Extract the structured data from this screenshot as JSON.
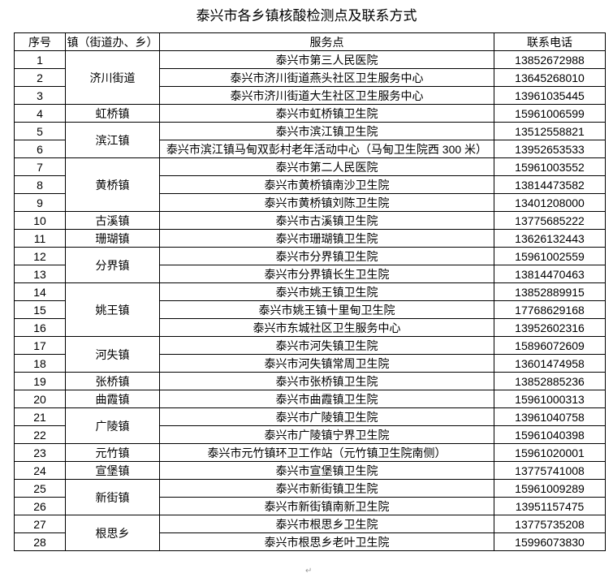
{
  "title": "泰兴市各乡镇核酸检测点及联系方式",
  "table": {
    "headers": [
      "序号",
      "镇（街道办、乡）",
      "服务点",
      "联系电话"
    ],
    "groups": [
      {
        "town": "济川街道",
        "rows": [
          {
            "no": "1",
            "site": "泰兴市第三人民医院",
            "phone": "13852672988"
          },
          {
            "no": "2",
            "site": "泰兴市济川街道燕头社区卫生服务中心",
            "phone": "13645268010"
          },
          {
            "no": "3",
            "site": "泰兴市济川街道大生社区卫生服务中心",
            "phone": "13961035445"
          }
        ]
      },
      {
        "town": "虹桥镇",
        "rows": [
          {
            "no": "4",
            "site": "泰兴市虹桥镇卫生院",
            "phone": "15961006599"
          }
        ]
      },
      {
        "town": "滨江镇",
        "rows": [
          {
            "no": "5",
            "site": "泰兴市滨江镇卫生院",
            "phone": "13512558821"
          },
          {
            "no": "6",
            "site": "泰兴市滨江镇马甸双彭村老年活动中心（马甸卫生院西 300 米）",
            "phone": "13952653533"
          }
        ]
      },
      {
        "town": "黄桥镇",
        "rows": [
          {
            "no": "7",
            "site": "泰兴市第二人民医院",
            "phone": "15961003552"
          },
          {
            "no": "8",
            "site": "泰兴市黄桥镇南沙卫生院",
            "phone": "13814473582"
          },
          {
            "no": "9",
            "site": "泰兴市黄桥镇刘陈卫生院",
            "phone": "13401208000"
          }
        ]
      },
      {
        "town": "古溪镇",
        "rows": [
          {
            "no": "10",
            "site": "泰兴市古溪镇卫生院",
            "phone": "13775685222"
          }
        ]
      },
      {
        "town": "珊瑚镇",
        "rows": [
          {
            "no": "11",
            "site": "泰兴市珊瑚镇卫生院",
            "phone": "13626132443"
          }
        ]
      },
      {
        "town": "分界镇",
        "rows": [
          {
            "no": "12",
            "site": "泰兴市分界镇卫生院",
            "phone": "15961002559"
          },
          {
            "no": "13",
            "site": "泰兴市分界镇长生卫生院",
            "phone": "13814470463"
          }
        ]
      },
      {
        "town": "姚王镇",
        "rows": [
          {
            "no": "14",
            "site": "泰兴市姚王镇卫生院",
            "phone": "13852889915"
          },
          {
            "no": "15",
            "site": "泰兴市姚王镇十里甸卫生院",
            "phone": "17768629168"
          },
          {
            "no": "16",
            "site": "泰兴市东城社区卫生服务中心",
            "phone": "13952602316"
          }
        ]
      },
      {
        "town": "河失镇",
        "rows": [
          {
            "no": "17",
            "site": "泰兴市河失镇卫生院",
            "phone": "15896072609"
          },
          {
            "no": "18",
            "site": "泰兴市河失镇常周卫生院",
            "phone": "13601474958"
          }
        ]
      },
      {
        "town": "张桥镇",
        "rows": [
          {
            "no": "19",
            "site": "泰兴市张桥镇卫生院",
            "phone": "13852885236"
          }
        ]
      },
      {
        "town": "曲霞镇",
        "rows": [
          {
            "no": "20",
            "site": "泰兴市曲霞镇卫生院",
            "phone": "15961000313"
          }
        ]
      },
      {
        "town": "广陵镇",
        "rows": [
          {
            "no": "21",
            "site": "泰兴市广陵镇卫生院",
            "phone": "13961040758"
          },
          {
            "no": "22",
            "site": "泰兴市广陵镇宁界卫生院",
            "phone": "15961040398"
          }
        ]
      },
      {
        "town": "元竹镇",
        "rows": [
          {
            "no": "23",
            "site": "泰兴市元竹镇环卫工作站（元竹镇卫生院南侧）",
            "phone": "15961020001"
          }
        ]
      },
      {
        "town": "宣堡镇",
        "rows": [
          {
            "no": "24",
            "site": "泰兴市宣堡镇卫生院",
            "phone": "13775741008"
          }
        ]
      },
      {
        "town": "新街镇",
        "rows": [
          {
            "no": "25",
            "site": "泰兴市新街镇卫生院",
            "phone": "15961009289"
          },
          {
            "no": "26",
            "site": "泰兴市新街镇南新卫生院",
            "phone": "13951157475"
          }
        ]
      },
      {
        "town": "根思乡",
        "rows": [
          {
            "no": "27",
            "site": "泰兴市根思乡卫生院",
            "phone": "13775735208"
          },
          {
            "no": "28",
            "site": "泰兴市根思乡老叶卫生院",
            "phone": "15996073830"
          }
        ]
      }
    ]
  }
}
